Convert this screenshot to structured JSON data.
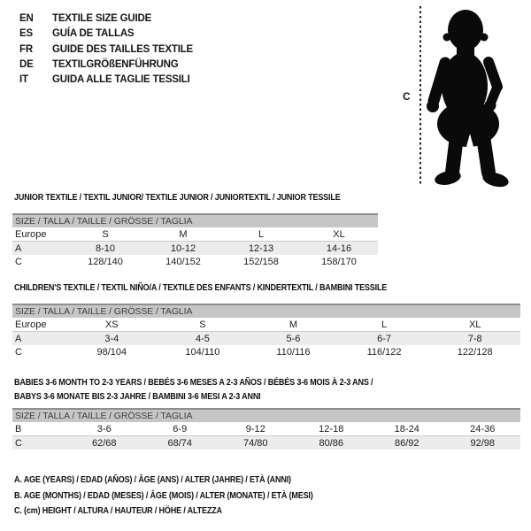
{
  "languages": [
    {
      "code": "EN",
      "title": "TEXTILE SIZE GUIDE"
    },
    {
      "code": "ES",
      "title": "GUÍA DE TALLAS"
    },
    {
      "code": "FR",
      "title": "GUIDE DES TAILLES TEXTILE"
    },
    {
      "code": "DE",
      "title": "TEXTILGRÖßENFÜHRUNG"
    },
    {
      "code": "IT",
      "title": "GUIDA ALLE TAGLIE TESSILI"
    }
  ],
  "figure": {
    "height_label": "C",
    "silhouette": "baby-toddler-standing-silhouette"
  },
  "tables": [
    {
      "id": "junior",
      "title_lines": [
        "JUNIOR TEXTILE / TEXTIL JUNIOR/ TEXTILE JUNIOR / JUNIORTEXTIL / JUNIOR TESSILE"
      ],
      "size_header": "SIZE / TALLA / TAILLE / GRÖSSE / TAGLIA",
      "rows": [
        {
          "label": "Europe",
          "cells": [
            "S",
            "M",
            "L",
            "XL"
          ]
        },
        {
          "label": "A",
          "cells": [
            "8-10",
            "10-12",
            "12-13",
            "14-16"
          ]
        },
        {
          "label": "C",
          "cells": [
            "128/140",
            "140/152",
            "152/158",
            "158/170"
          ]
        }
      ]
    },
    {
      "id": "children",
      "title_lines": [
        "CHILDREN'S TEXTILE / TEXTIL NIÑO/A / TEXTILE DES ENFANTS / KINDERTEXTIL / BAMBINI TESSILE"
      ],
      "size_header": "SIZE / TALLA / TAILLE / GRÖSSE / TAGLIA",
      "rows": [
        {
          "label": "Europe",
          "cells": [
            "XS",
            "S",
            "M",
            "L",
            "XL"
          ]
        },
        {
          "label": "A",
          "cells": [
            "3-4",
            "4-5",
            "5-6",
            "6-7",
            "7-8"
          ]
        },
        {
          "label": "C",
          "cells": [
            "98/104",
            "104/110",
            "110/116",
            "116/122",
            "122/128"
          ]
        }
      ]
    },
    {
      "id": "babies",
      "title_lines": [
        "BABIES 3-6 MONTH TO 2-3 YEARS / BEBÉS 3-6 MESES A 2-3 AÑOS / BÉBÉS 3-6 MOIS À 2-3 ANS /",
        "BABYS 3-6 MONATE BIS 2-3 JAHRE / BAMBINI 3-6 MESI A 2-3 ANNI"
      ],
      "size_header": "SIZE / TALLA / TAILLE / GRÖSSE / TAGLIA",
      "rows": [
        {
          "label": "B",
          "cells": [
            "3-6",
            "6-9",
            "9-12",
            "12-18",
            "18-24",
            "24-36"
          ]
        },
        {
          "label": "C",
          "cells": [
            "62/68",
            "68/74",
            "74/80",
            "80/86",
            "86/92",
            "92/98"
          ]
        }
      ]
    }
  ],
  "legend": [
    "A. AGE (YEARS) / EDAD (AÑOS) / ÂGE (ANS) / ALTER (JAHRE) / ETÀ (ANNI)",
    "B. AGE (MONTHS) / EDAD (MESES) / ÂGE (MOIS) / ALTER (MONATE) / ETÀ (MESI)",
    "C. (cm) HEIGHT / ALTURA / HAUTEUR / HÖHE / ALTEZZA"
  ],
  "colors": {
    "header_bar": "#c6c6c6",
    "header_top_border": "#8e8e8e",
    "shaded_row": "#ececec",
    "text": "#161616"
  }
}
